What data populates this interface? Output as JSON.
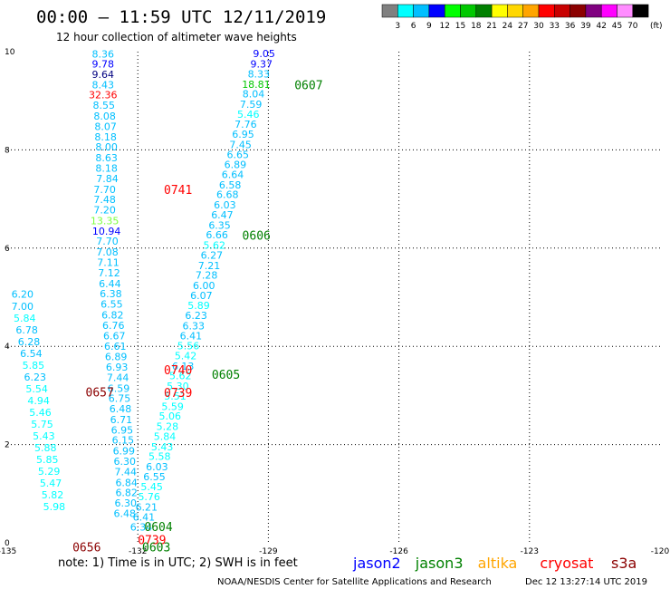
{
  "header": {
    "title": "00:00 – 11:59 UTC 12/11/2019",
    "subtitle": "12 hour collection of altimeter wave heights"
  },
  "colorbar": {
    "colors": [
      "#808080",
      "#00ffff",
      "#00bfff",
      "#0000ff",
      "#00ff00",
      "#00c800",
      "#008000",
      "#ffff00",
      "#ffd700",
      "#ffa500",
      "#ff0000",
      "#c80000",
      "#8b0000",
      "#800080",
      "#ff00ff",
      "#ff8cff",
      "#000000"
    ],
    "labels": [
      "3",
      "6",
      "9",
      "12",
      "15",
      "18",
      "21",
      "24",
      "27",
      "30",
      "33",
      "36",
      "39",
      "42",
      "45",
      "70"
    ],
    "unit": "(ft)"
  },
  "footer": {
    "note": "note: 1) Time is in UTC; 2) SWH is in feet",
    "credit": "NOAA/NESDIS Center for Satellite Applications and Research",
    "timestamp": "Dec 12 13:27:14 UTC 2019"
  },
  "legend": [
    {
      "name": "jason2",
      "color": "#0000ff"
    },
    {
      "name": "jason3",
      "color": "#008000"
    },
    {
      "name": "altika",
      "color": "#ffa500"
    },
    {
      "name": "cryosat",
      "color": "#ff0000"
    },
    {
      "name": "s3a",
      "color": "#8b0000"
    }
  ],
  "chart_data": {
    "type": "scatter",
    "xlim": [
      -135,
      -120
    ],
    "ylim": [
      0,
      10
    ],
    "x_ticks": [
      "-135",
      "-132",
      "-129",
      "-126",
      "-123",
      "-120"
    ],
    "y_ticks": [
      "0",
      "2",
      "4",
      "6",
      "8",
      "10"
    ],
    "grid": true,
    "value_colors": {
      "c6": "#00bfff",
      "c9": "#0000ff",
      "c12": "#00ff00",
      "c3": "#00ffff",
      "c33": "#ff0000",
      "c21": "#008000",
      "c60": "#ff0000"
    },
    "points": [
      {
        "lon": -132.8,
        "lat": 9.95,
        "v": "8.36",
        "c": "#00bfff"
      },
      {
        "lon": -132.8,
        "lat": 9.75,
        "v": "9.78",
        "c": "#0000ff"
      },
      {
        "lon": -132.8,
        "lat": 9.54,
        "v": "9.64",
        "c": "#000080"
      },
      {
        "lon": -132.8,
        "lat": 9.33,
        "v": "8.43",
        "c": "#00bfff"
      },
      {
        "lon": -132.8,
        "lat": 9.12,
        "v": "32.36",
        "c": "#ff0000"
      },
      {
        "lon": -132.78,
        "lat": 8.91,
        "v": "8.55",
        "c": "#00bfff"
      },
      {
        "lon": -132.76,
        "lat": 8.69,
        "v": "8.08",
        "c": "#00bfff"
      },
      {
        "lon": -132.74,
        "lat": 8.48,
        "v": "8.07",
        "c": "#00bfff"
      },
      {
        "lon": -132.74,
        "lat": 8.27,
        "v": "8.18",
        "c": "#00bfff"
      },
      {
        "lon": -132.72,
        "lat": 8.06,
        "v": "8.00",
        "c": "#00bfff"
      },
      {
        "lon": -132.72,
        "lat": 7.84,
        "v": "8.63",
        "c": "#00bfff"
      },
      {
        "lon": -132.72,
        "lat": 7.63,
        "v": "8.18",
        "c": "#00bfff"
      },
      {
        "lon": -132.7,
        "lat": 7.42,
        "v": "7.84",
        "c": "#00bfff"
      },
      {
        "lon": -132.76,
        "lat": 7.2,
        "v": "7.70",
        "c": "#00bfff"
      },
      {
        "lon": -132.76,
        "lat": 6.99,
        "v": "7.48",
        "c": "#00bfff"
      },
      {
        "lon": -132.76,
        "lat": 6.78,
        "v": "7.20",
        "c": "#00bfff"
      },
      {
        "lon": -132.76,
        "lat": 6.56,
        "v": "13.35",
        "c": "#7cff3c"
      },
      {
        "lon": -132.72,
        "lat": 6.35,
        "v": "10.94",
        "c": "#0000ff"
      },
      {
        "lon": -132.7,
        "lat": 6.14,
        "v": "7.70",
        "c": "#00bfff"
      },
      {
        "lon": -132.7,
        "lat": 5.92,
        "v": "7.08",
        "c": "#00bfff"
      },
      {
        "lon": -132.68,
        "lat": 5.71,
        "v": "7.11",
        "c": "#00bfff"
      },
      {
        "lon": -132.66,
        "lat": 5.5,
        "v": "7.12",
        "c": "#00bfff"
      },
      {
        "lon": -132.64,
        "lat": 5.28,
        "v": "6.44",
        "c": "#00bfff"
      },
      {
        "lon": -132.62,
        "lat": 5.07,
        "v": "6.38",
        "c": "#00bfff"
      },
      {
        "lon": -132.6,
        "lat": 4.86,
        "v": "6.55",
        "c": "#00bfff"
      },
      {
        "lon": -132.58,
        "lat": 4.64,
        "v": "6.82",
        "c": "#00bfff"
      },
      {
        "lon": -132.56,
        "lat": 4.43,
        "v": "6.76",
        "c": "#00bfff"
      },
      {
        "lon": -132.54,
        "lat": 4.22,
        "v": "6.67",
        "c": "#00bfff"
      },
      {
        "lon": -132.52,
        "lat": 4.0,
        "v": "6.61",
        "c": "#00bfff"
      },
      {
        "lon": -132.5,
        "lat": 3.79,
        "v": "6.89",
        "c": "#00bfff"
      },
      {
        "lon": -132.48,
        "lat": 3.58,
        "v": "6.93",
        "c": "#00bfff"
      },
      {
        "lon": -132.46,
        "lat": 3.37,
        "v": "7.44",
        "c": "#00bfff"
      },
      {
        "lon": -132.44,
        "lat": 3.15,
        "v": "6.59",
        "c": "#00bfff"
      },
      {
        "lon": -132.42,
        "lat": 2.94,
        "v": "6.75",
        "c": "#00bfff"
      },
      {
        "lon": -132.4,
        "lat": 2.73,
        "v": "6.48",
        "c": "#00bfff"
      },
      {
        "lon": -132.38,
        "lat": 2.51,
        "v": "6.71",
        "c": "#00bfff"
      },
      {
        "lon": -132.36,
        "lat": 2.3,
        "v": "6.95",
        "c": "#00bfff"
      },
      {
        "lon": -132.34,
        "lat": 2.09,
        "v": "6.15",
        "c": "#00bfff"
      },
      {
        "lon": -132.32,
        "lat": 1.87,
        "v": "6.99",
        "c": "#00bfff"
      },
      {
        "lon": -132.3,
        "lat": 1.66,
        "v": "6.30",
        "c": "#00bfff"
      },
      {
        "lon": -132.28,
        "lat": 1.45,
        "v": "7.44",
        "c": "#00bfff"
      },
      {
        "lon": -132.26,
        "lat": 1.23,
        "v": "6.84",
        "c": "#00bfff"
      },
      {
        "lon": -132.26,
        "lat": 1.02,
        "v": "6.82",
        "c": "#00bfff"
      },
      {
        "lon": -132.28,
        "lat": 0.81,
        "v": "6.30",
        "c": "#00bfff"
      },
      {
        "lon": -132.3,
        "lat": 0.6,
        "v": "6.48",
        "c": "#00bfff"
      },
      {
        "lon": -134.65,
        "lat": 5.06,
        "v": "6.20",
        "c": "#00bfff"
      },
      {
        "lon": -134.65,
        "lat": 4.82,
        "v": "7.00",
        "c": "#00bfff"
      },
      {
        "lon": -134.6,
        "lat": 4.58,
        "v": "5.84",
        "c": "#00ffff"
      },
      {
        "lon": -134.55,
        "lat": 4.34,
        "v": "6.78",
        "c": "#00bfff"
      },
      {
        "lon": -134.5,
        "lat": 4.1,
        "v": "6.28",
        "c": "#00bfff"
      },
      {
        "lon": -134.45,
        "lat": 3.86,
        "v": "6.54",
        "c": "#00bfff"
      },
      {
        "lon": -134.4,
        "lat": 3.62,
        "v": "5.85",
        "c": "#00ffff"
      },
      {
        "lon": -134.36,
        "lat": 3.38,
        "v": "6.23",
        "c": "#00bfff"
      },
      {
        "lon": -134.32,
        "lat": 3.14,
        "v": "5.54",
        "c": "#00ffff"
      },
      {
        "lon": -134.28,
        "lat": 2.9,
        "v": "4.94",
        "c": "#00ffff"
      },
      {
        "lon": -134.24,
        "lat": 2.66,
        "v": "5.46",
        "c": "#00ffff"
      },
      {
        "lon": -134.2,
        "lat": 2.42,
        "v": "5.75",
        "c": "#00ffff"
      },
      {
        "lon": -134.16,
        "lat": 2.18,
        "v": "5.43",
        "c": "#00ffff"
      },
      {
        "lon": -134.12,
        "lat": 1.94,
        "v": "5.88",
        "c": "#00ffff"
      },
      {
        "lon": -134.08,
        "lat": 1.7,
        "v": "5.85",
        "c": "#00ffff"
      },
      {
        "lon": -134.04,
        "lat": 1.46,
        "v": "5.29",
        "c": "#00ffff"
      },
      {
        "lon": -134.0,
        "lat": 1.22,
        "v": "5.47",
        "c": "#00ffff"
      },
      {
        "lon": -133.96,
        "lat": 0.98,
        "v": "5.82",
        "c": "#00ffff"
      },
      {
        "lon": -133.92,
        "lat": 0.74,
        "v": "5.98",
        "c": "#00ffff"
      },
      {
        "lon": -129.1,
        "lat": 9.96,
        "v": "9.05",
        "c": "#0000ff"
      },
      {
        "lon": -129.16,
        "lat": 9.75,
        "v": "9.37",
        "c": "#0000ff"
      },
      {
        "lon": -129.22,
        "lat": 9.55,
        "v": "8.33",
        "c": "#00bfff"
      },
      {
        "lon": -129.28,
        "lat": 9.34,
        "v": "18.81",
        "c": "#00c800"
      },
      {
        "lon": -129.34,
        "lat": 9.14,
        "v": "8.04",
        "c": "#00bfff"
      },
      {
        "lon": -129.4,
        "lat": 8.93,
        "v": "7.59",
        "c": "#00bfff"
      },
      {
        "lon": -129.46,
        "lat": 8.73,
        "v": "5.46",
        "c": "#00ffff"
      },
      {
        "lon": -129.52,
        "lat": 8.52,
        "v": "7.76",
        "c": "#00bfff"
      },
      {
        "lon": -129.58,
        "lat": 8.32,
        "v": "6.95",
        "c": "#00bfff"
      },
      {
        "lon": -129.64,
        "lat": 8.11,
        "v": "7.45",
        "c": "#00bfff"
      },
      {
        "lon": -129.7,
        "lat": 7.91,
        "v": "6.65",
        "c": "#00bfff"
      },
      {
        "lon": -129.76,
        "lat": 7.7,
        "v": "6.89",
        "c": "#00bfff"
      },
      {
        "lon": -129.82,
        "lat": 7.5,
        "v": "6.64",
        "c": "#00bfff"
      },
      {
        "lon": -129.88,
        "lat": 7.29,
        "v": "6.58",
        "c": "#00bfff"
      },
      {
        "lon": -129.94,
        "lat": 7.09,
        "v": "6.68",
        "c": "#00bfff"
      },
      {
        "lon": -130.0,
        "lat": 6.88,
        "v": "6.03",
        "c": "#00bfff"
      },
      {
        "lon": -130.06,
        "lat": 6.68,
        "v": "6.47",
        "c": "#00bfff"
      },
      {
        "lon": -130.12,
        "lat": 6.47,
        "v": "6.35",
        "c": "#00bfff"
      },
      {
        "lon": -130.18,
        "lat": 6.27,
        "v": "6.66",
        "c": "#00bfff"
      },
      {
        "lon": -130.24,
        "lat": 6.06,
        "v": "5.62",
        "c": "#00ffff"
      },
      {
        "lon": -130.3,
        "lat": 5.86,
        "v": "6.27",
        "c": "#00bfff"
      },
      {
        "lon": -130.36,
        "lat": 5.65,
        "v": "7.21",
        "c": "#00bfff"
      },
      {
        "lon": -130.42,
        "lat": 5.45,
        "v": "7.28",
        "c": "#00bfff"
      },
      {
        "lon": -130.48,
        "lat": 5.24,
        "v": "6.00",
        "c": "#00bfff"
      },
      {
        "lon": -130.54,
        "lat": 5.04,
        "v": "6.07",
        "c": "#00bfff"
      },
      {
        "lon": -130.6,
        "lat": 4.83,
        "v": "5.89",
        "c": "#00ffff"
      },
      {
        "lon": -130.66,
        "lat": 4.63,
        "v": "6.23",
        "c": "#00bfff"
      },
      {
        "lon": -130.72,
        "lat": 4.42,
        "v": "6.33",
        "c": "#00bfff"
      },
      {
        "lon": -130.78,
        "lat": 4.22,
        "v": "6.41",
        "c": "#00bfff"
      },
      {
        "lon": -130.84,
        "lat": 4.01,
        "v": "5.56",
        "c": "#00ffff"
      },
      {
        "lon": -130.9,
        "lat": 3.81,
        "v": "5.42",
        "c": "#00ffff"
      },
      {
        "lon": -130.96,
        "lat": 3.6,
        "v": "6.13",
        "c": "#00bfff"
      },
      {
        "lon": -131.02,
        "lat": 3.4,
        "v": "5.62",
        "c": "#00ffff"
      },
      {
        "lon": -131.08,
        "lat": 3.19,
        "v": "5.30",
        "c": "#00ffff"
      },
      {
        "lon": -131.14,
        "lat": 2.99,
        "v": "5.51",
        "c": "#00ffff"
      },
      {
        "lon": -131.2,
        "lat": 2.78,
        "v": "5.59",
        "c": "#00ffff"
      },
      {
        "lon": -131.26,
        "lat": 2.58,
        "v": "5.06",
        "c": "#00ffff"
      },
      {
        "lon": -131.32,
        "lat": 2.37,
        "v": "5.28",
        "c": "#00ffff"
      },
      {
        "lon": -131.38,
        "lat": 2.17,
        "v": "5.84",
        "c": "#00ffff"
      },
      {
        "lon": -131.44,
        "lat": 1.96,
        "v": "5.43",
        "c": "#00ffff"
      },
      {
        "lon": -131.5,
        "lat": 1.76,
        "v": "5.58",
        "c": "#00ffff"
      },
      {
        "lon": -131.56,
        "lat": 1.55,
        "v": "6.03",
        "c": "#00bfff"
      },
      {
        "lon": -131.62,
        "lat": 1.35,
        "v": "6.55",
        "c": "#00bfff"
      },
      {
        "lon": -131.68,
        "lat": 1.14,
        "v": "5.45",
        "c": "#00ffff"
      },
      {
        "lon": -131.74,
        "lat": 0.94,
        "v": "5.76",
        "c": "#00ffff"
      },
      {
        "lon": -131.8,
        "lat": 0.73,
        "v": "6.21",
        "c": "#00bfff"
      },
      {
        "lon": -131.86,
        "lat": 0.53,
        "v": "6.41",
        "c": "#00bfff"
      },
      {
        "lon": -131.92,
        "lat": 0.32,
        "v": "6.34",
        "c": "#00bfff"
      }
    ],
    "time_labels": [
      {
        "lon": -128.4,
        "lat": 9.33,
        "t": "0607",
        "c": "#008000"
      },
      {
        "lon": -131.4,
        "lat": 7.2,
        "t": "0741",
        "c": "#ff0000"
      },
      {
        "lon": -129.6,
        "lat": 6.26,
        "t": "0606",
        "c": "#008000"
      },
      {
        "lon": -133.2,
        "lat": 3.07,
        "t": "0657",
        "c": "#8b0000"
      },
      {
        "lon": -131.4,
        "lat": 3.52,
        "t": "0740",
        "c": "#ff0000"
      },
      {
        "lon": -130.3,
        "lat": 3.43,
        "t": "0605",
        "c": "#008000"
      },
      {
        "lon": -131.4,
        "lat": 3.06,
        "t": "0739",
        "c": "#ff0000"
      },
      {
        "lon": -131.85,
        "lat": 0.33,
        "t": "0604",
        "c": "#008000"
      },
      {
        "lon": -132.0,
        "lat": 0.06,
        "t": "0739",
        "c": "#ff0000"
      },
      {
        "lon": -131.9,
        "lat": -0.08,
        "t": "0603",
        "c": "#008000"
      },
      {
        "lon": -133.5,
        "lat": -0.08,
        "t": "0656",
        "c": "#8b0000"
      }
    ]
  }
}
